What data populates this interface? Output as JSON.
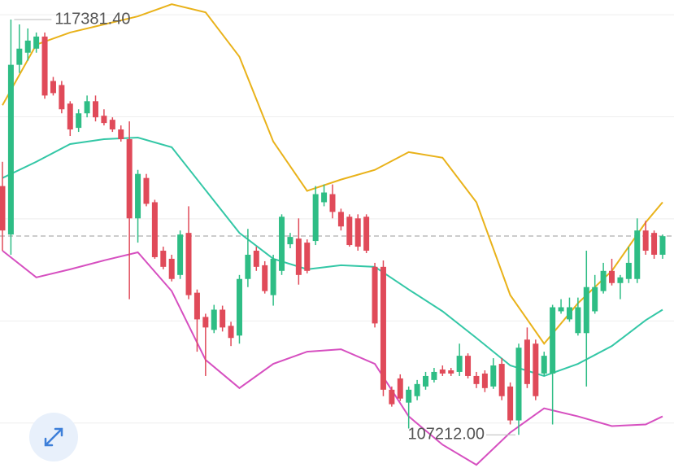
{
  "chart_data": {
    "type": "candlestick",
    "up_color": "#2ebd85",
    "down_color": "#e04a59",
    "ylim": [
      106400,
      117860
    ],
    "gridlines": [
      117500,
      115000,
      112500,
      110000,
      107500
    ],
    "last_price": 112079,
    "candles": [
      [
        113304,
        113898,
        111721,
        112216
      ],
      [
        112117,
        117381.4,
        111622,
        116273
      ],
      [
        116273,
        117262,
        116075,
        116669
      ],
      [
        116570,
        117163,
        116372,
        116866
      ],
      [
        116669,
        117064,
        116570,
        116965
      ],
      [
        116965,
        117064,
        115442,
        115521
      ],
      [
        115877,
        115976,
        115521,
        115580
      ],
      [
        115778,
        115877,
        115085,
        115184
      ],
      [
        115323,
        115382,
        114531,
        114690
      ],
      [
        114729,
        115184,
        114630,
        115085
      ],
      [
        115085,
        115521,
        114987,
        115382
      ],
      [
        115382,
        115521,
        114887,
        114987
      ],
      [
        115026,
        115184,
        114789,
        114848
      ],
      [
        114927,
        114987,
        114630,
        114690
      ],
      [
        114690,
        114789,
        114393,
        114452
      ],
      [
        114452,
        114887,
        110534,
        112513
      ],
      [
        112513,
        113700,
        111919,
        113601
      ],
      [
        113502,
        113601,
        112809,
        112869
      ],
      [
        112908,
        112968,
        111523,
        111563
      ],
      [
        111721,
        111820,
        111266,
        111326
      ],
      [
        111523,
        111622,
        110969,
        111029
      ],
      [
        111127,
        112216,
        111029,
        112117
      ],
      [
        112157,
        112809,
        110534,
        110633
      ],
      [
        110692,
        110771,
        109248,
        110039
      ],
      [
        110099,
        110178,
        108653,
        109841
      ],
      [
        109782,
        110395,
        109703,
        110277
      ],
      [
        110277,
        110375,
        109742,
        109841
      ],
      [
        109881,
        109980,
        109386,
        109584
      ],
      [
        109643,
        111127,
        109445,
        111029
      ],
      [
        111029,
        112255,
        110830,
        111622
      ],
      [
        111721,
        111820,
        111227,
        111326
      ],
      [
        111365,
        111464,
        110672,
        110732
      ],
      [
        110633,
        111622,
        110375,
        111523
      ],
      [
        111227,
        112612,
        111127,
        112552
      ],
      [
        111879,
        112157,
        111781,
        112058
      ],
      [
        112018,
        112513,
        110890,
        111127
      ],
      [
        111919,
        111998,
        111167,
        111227
      ],
      [
        111959,
        113304,
        111860,
        113106
      ],
      [
        112908,
        113344,
        112809,
        113146
      ],
      [
        113106,
        113344,
        112513,
        112671
      ],
      [
        112671,
        112750,
        112216,
        112315
      ],
      [
        112552,
        112612,
        111820,
        111860
      ],
      [
        112513,
        112612,
        111721,
        111820
      ],
      [
        112552,
        112612,
        111662,
        111721
      ],
      [
        111326,
        111424,
        109841,
        109940
      ],
      [
        111326,
        111483,
        108159,
        108317
      ],
      [
        108317,
        108396,
        107902,
        107961
      ],
      [
        108594,
        108693,
        108040,
        108100
      ],
      [
        108001,
        108396,
        107367,
        108317
      ],
      [
        108159,
        108555,
        108060,
        108456
      ],
      [
        108396,
        108753,
        108317,
        108653
      ],
      [
        108555,
        108851,
        108495,
        108753
      ],
      [
        108812,
        108911,
        108653,
        108713
      ],
      [
        108792,
        108851,
        108653,
        108713
      ],
      [
        108753,
        109445,
        108653,
        109148
      ],
      [
        109148,
        109208,
        108594,
        108653
      ],
      [
        108653,
        108753,
        108357,
        108456
      ],
      [
        108713,
        108792,
        108258,
        108357
      ],
      [
        108396,
        109089,
        108337,
        108911
      ],
      [
        108950,
        109089,
        108060,
        108159
      ],
      [
        108396,
        108495,
        107466,
        107565
      ],
      [
        107565,
        109445,
        107212,
        109346
      ],
      [
        109544,
        109841,
        108357,
        108456
      ],
      [
        109445,
        109544,
        108060,
        108159
      ],
      [
        108713,
        109248,
        108653,
        109148
      ],
      [
        108713,
        110395,
        107466,
        110336
      ],
      [
        110237,
        110534,
        110178,
        110336
      ],
      [
        110039,
        110573,
        109980,
        110336
      ],
      [
        109703,
        110573,
        109643,
        110336
      ],
      [
        109703,
        111721,
        108396,
        110830
      ],
      [
        110237,
        111127,
        110178,
        110830
      ],
      [
        110732,
        111424,
        110672,
        111227
      ],
      [
        111227,
        111523,
        110870,
        110929
      ],
      [
        110929,
        111127,
        110534,
        111068
      ],
      [
        111029,
        111820,
        110929,
        111424
      ],
      [
        111029,
        112513,
        110929,
        112216
      ],
      [
        112216,
        112453,
        111622,
        111721
      ],
      [
        112157,
        112216,
        111523,
        111622
      ],
      [
        111622,
        112117,
        111523,
        112077
      ]
    ],
    "bands": {
      "x": [
        0,
        4,
        8,
        12,
        16,
        20,
        24,
        28,
        32,
        36,
        40,
        44,
        48,
        52,
        56,
        60,
        64,
        68,
        72,
        76,
        78
      ],
      "series": [
        {
          "color": "#e9b21a",
          "values": [
            115283,
            116768,
            117064,
            117262,
            117460,
            117757,
            117559,
            116471,
            114393,
            113186,
            113463,
            113700,
            114135,
            113997,
            112908,
            110633,
            109445,
            110435,
            111227,
            112414,
            112908
          ]
        },
        {
          "color": "#33c7a6",
          "values": [
            113502,
            113898,
            114333,
            114452,
            114492,
            114254,
            113205,
            112157,
            111523,
            111266,
            111365,
            111326,
            110771,
            110237,
            109584,
            108911,
            108653,
            108950,
            109386,
            110019,
            110277
          ]
        },
        {
          "color": "#d64fc0",
          "values": [
            111721,
            111068,
            111266,
            111483,
            111681,
            110732,
            109049,
            108357,
            108950,
            109248,
            109307,
            108950,
            107664,
            106971,
            106477,
            107268,
            107862,
            107664,
            107427,
            107466,
            107664
          ]
        }
      ]
    },
    "annotations": [
      {
        "value": 117381.4,
        "label": "117381.40"
      },
      {
        "value": 107212,
        "label": "107212.00"
      }
    ]
  }
}
